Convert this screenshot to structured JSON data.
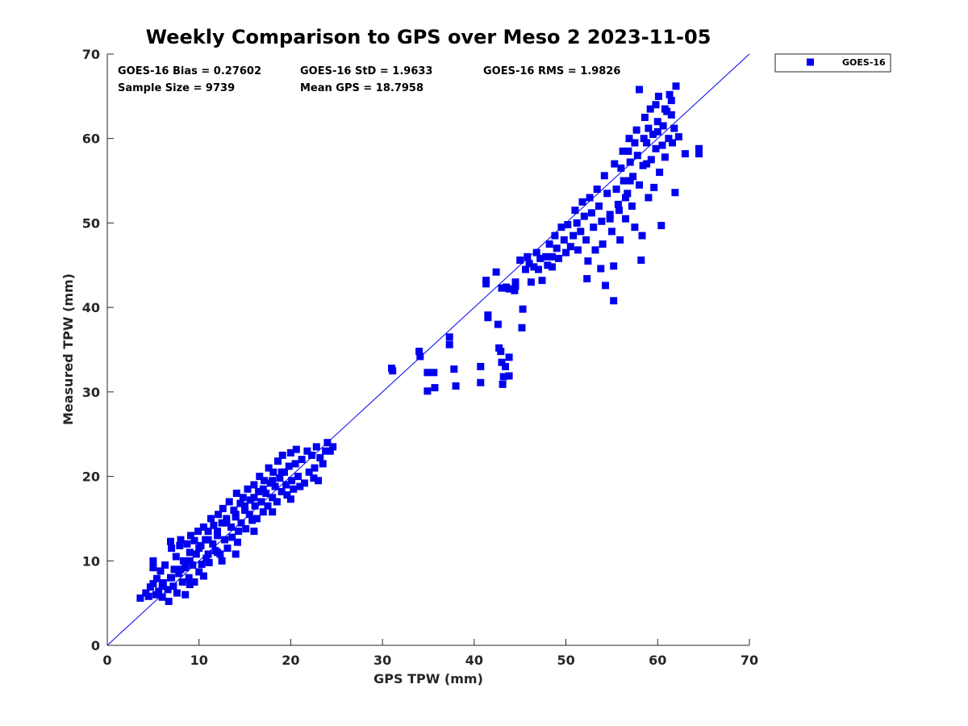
{
  "chart_data": {
    "type": "scatter",
    "title": "Weekly Comparison to GPS over Meso 2 2023-11-05",
    "xlabel": "GPS TPW (mm)",
    "ylabel": "Measured TPW (mm)",
    "xlim": [
      0,
      70
    ],
    "ylim": [
      0,
      70
    ],
    "xticks": [
      "0",
      "10",
      "20",
      "30",
      "40",
      "50",
      "60",
      "70"
    ],
    "yticks": [
      "0",
      "10",
      "20",
      "30",
      "40",
      "50",
      "60",
      "70"
    ],
    "grid": false,
    "legend_position": "outside-top-right",
    "reference_line": {
      "x": [
        0,
        70
      ],
      "y": [
        0,
        70
      ]
    },
    "stats": {
      "bias": "GOES-16 Bias = 0.27602",
      "std": "GOES-16 StD = 1.9633",
      "rms": "GOES-16 RMS = 1.9826",
      "sample_size": "Sample Size = 9739",
      "mean_gps": "Mean GPS = 18.7958"
    },
    "series": [
      {
        "name": "GOES-16",
        "color": "#0000ee",
        "marker": "square",
        "points": [
          [
            3.6,
            5.6
          ],
          [
            4.2,
            6.2
          ],
          [
            4.5,
            5.8
          ],
          [
            4.7,
            6.9
          ],
          [
            5.0,
            7.3
          ],
          [
            5.0,
            9.2
          ],
          [
            5.0,
            10.0
          ],
          [
            5.3,
            6.0
          ],
          [
            5.4,
            7.9
          ],
          [
            5.6,
            6.4
          ],
          [
            5.8,
            8.8
          ],
          [
            6.0,
            5.7
          ],
          [
            6.1,
            7.4
          ],
          [
            6.3,
            9.5
          ],
          [
            6.6,
            6.6
          ],
          [
            6.7,
            5.2
          ],
          [
            6.9,
            8.0
          ],
          [
            6.9,
            12.3
          ],
          [
            7.0,
            11.5
          ],
          [
            7.2,
            7.0
          ],
          [
            7.3,
            9.0
          ],
          [
            7.5,
            10.5
          ],
          [
            7.6,
            6.2
          ],
          [
            7.8,
            8.5
          ],
          [
            7.9,
            11.8
          ],
          [
            8.0,
            12.5
          ],
          [
            8.2,
            7.5
          ],
          [
            8.3,
            10.0
          ],
          [
            8.5,
            9.2
          ],
          [
            8.5,
            6.0
          ],
          [
            8.7,
            12.0
          ],
          [
            8.9,
            8.0
          ],
          [
            9.0,
            11.0
          ],
          [
            9.1,
            13.0
          ],
          [
            9.3,
            9.5
          ],
          [
            9.5,
            7.5
          ],
          [
            9.5,
            12.4
          ],
          [
            9.7,
            10.8
          ],
          [
            9.9,
            13.5
          ],
          [
            10.0,
            8.7
          ],
          [
            10.2,
            11.8
          ],
          [
            10.3,
            9.6
          ],
          [
            10.5,
            14.0
          ],
          [
            10.7,
            12.5
          ],
          [
            10.8,
            10.3
          ],
          [
            11.0,
            13.5
          ],
          [
            11.1,
            9.8
          ],
          [
            11.3,
            15.0
          ],
          [
            11.5,
            12.0
          ],
          [
            11.6,
            14.2
          ],
          [
            11.8,
            11.2
          ],
          [
            12.0,
            13.0
          ],
          [
            12.1,
            15.5
          ],
          [
            12.3,
            10.8
          ],
          [
            12.5,
            14.5
          ],
          [
            12.6,
            16.2
          ],
          [
            12.8,
            12.5
          ],
          [
            13.0,
            15.0
          ],
          [
            13.1,
            11.5
          ],
          [
            13.3,
            17.0
          ],
          [
            13.5,
            14.0
          ],
          [
            13.6,
            12.8
          ],
          [
            13.8,
            16.0
          ],
          [
            14.0,
            15.2
          ],
          [
            14.1,
            18.0
          ],
          [
            14.3,
            13.5
          ],
          [
            14.5,
            16.8
          ],
          [
            14.6,
            14.5
          ],
          [
            14.8,
            17.5
          ],
          [
            15.0,
            16.0
          ],
          [
            15.1,
            13.8
          ],
          [
            15.3,
            18.5
          ],
          [
            15.5,
            15.5
          ],
          [
            15.6,
            17.2
          ],
          [
            15.8,
            14.8
          ],
          [
            16.0,
            19.0
          ],
          [
            16.1,
            16.5
          ],
          [
            16.3,
            15.0
          ],
          [
            16.5,
            18.2
          ],
          [
            16.6,
            20.0
          ],
          [
            16.8,
            17.0
          ],
          [
            17.0,
            15.8
          ],
          [
            17.1,
            19.5
          ],
          [
            17.3,
            18.0
          ],
          [
            17.5,
            16.5
          ],
          [
            17.6,
            21.0
          ],
          [
            17.8,
            19.2
          ],
          [
            18.0,
            17.5
          ],
          [
            18.1,
            20.5
          ],
          [
            18.3,
            18.8
          ],
          [
            18.5,
            17.0
          ],
          [
            18.6,
            21.8
          ],
          [
            18.8,
            19.8
          ],
          [
            19.0,
            18.2
          ],
          [
            19.1,
            22.5
          ],
          [
            19.3,
            20.5
          ],
          [
            19.5,
            19.0
          ],
          [
            19.6,
            17.8
          ],
          [
            19.8,
            21.2
          ],
          [
            20.0,
            22.8
          ],
          [
            20.1,
            19.5
          ],
          [
            20.3,
            18.5
          ],
          [
            20.5,
            21.5
          ],
          [
            20.6,
            23.2
          ],
          [
            20.8,
            20.0
          ],
          [
            21.0,
            18.8
          ],
          [
            21.2,
            22.0
          ],
          [
            21.5,
            19.2
          ],
          [
            21.8,
            23.0
          ],
          [
            22.0,
            20.5
          ],
          [
            22.3,
            22.5
          ],
          [
            22.6,
            21.0
          ],
          [
            22.8,
            23.5
          ],
          [
            23.0,
            19.5
          ],
          [
            23.2,
            22.2
          ],
          [
            23.5,
            21.5
          ],
          [
            23.8,
            23.0
          ],
          [
            24.0,
            24.0
          ],
          [
            24.3,
            23.0
          ],
          [
            24.6,
            23.5
          ],
          [
            11.0,
            10.8
          ],
          [
            12.0,
            11.0
          ],
          [
            14.0,
            10.8
          ],
          [
            8.0,
            9.0
          ],
          [
            9.0,
            10.0
          ],
          [
            10.0,
            11.5
          ],
          [
            11.0,
            12.5
          ],
          [
            12.0,
            13.5
          ],
          [
            13.0,
            14.5
          ],
          [
            14.0,
            15.5
          ],
          [
            15.0,
            16.5
          ],
          [
            16.0,
            17.5
          ],
          [
            17.0,
            18.5
          ],
          [
            18.0,
            19.5
          ],
          [
            19.0,
            20.5
          ],
          [
            6.0,
            7.0
          ],
          [
            7.0,
            8.0
          ],
          [
            16.0,
            13.5
          ],
          [
            18.0,
            15.8
          ],
          [
            20.0,
            17.3
          ],
          [
            22.5,
            19.8
          ],
          [
            14.2,
            12.2
          ],
          [
            12.5,
            10.0
          ],
          [
            10.5,
            8.2
          ],
          [
            9.0,
            7.2
          ],
          [
            31.0,
            32.8
          ],
          [
            31.1,
            32.5
          ],
          [
            34.0,
            34.8
          ],
          [
            34.1,
            34.2
          ],
          [
            34.9,
            32.3
          ],
          [
            34.9,
            30.1
          ],
          [
            35.6,
            32.3
          ],
          [
            35.7,
            30.5
          ],
          [
            37.3,
            36.5
          ],
          [
            37.3,
            35.6
          ],
          [
            37.8,
            32.7
          ],
          [
            38.0,
            30.7
          ],
          [
            40.7,
            33.0
          ],
          [
            40.7,
            31.1
          ],
          [
            41.3,
            42.8
          ],
          [
            41.3,
            43.2
          ],
          [
            41.5,
            38.8
          ],
          [
            41.5,
            39.1
          ],
          [
            42.4,
            44.2
          ],
          [
            42.6,
            38.0
          ],
          [
            42.7,
            35.2
          ],
          [
            42.9,
            34.8
          ],
          [
            43.0,
            42.3
          ],
          [
            43.0,
            33.5
          ],
          [
            43.1,
            30.9
          ],
          [
            43.2,
            31.8
          ],
          [
            43.4,
            33.0
          ],
          [
            43.5,
            42.4
          ],
          [
            43.8,
            31.9
          ],
          [
            43.8,
            34.1
          ],
          [
            43.8,
            42.2
          ],
          [
            44.4,
            42.0
          ],
          [
            44.5,
            42.5
          ],
          [
            44.5,
            43.0
          ],
          [
            45.0,
            45.6
          ],
          [
            45.2,
            37.6
          ],
          [
            45.3,
            39.8
          ],
          [
            45.6,
            44.5
          ],
          [
            45.8,
            46.0
          ],
          [
            46.0,
            45.2
          ],
          [
            46.2,
            43.0
          ],
          [
            46.5,
            44.8
          ],
          [
            46.8,
            46.5
          ],
          [
            47.0,
            44.5
          ],
          [
            47.2,
            45.8
          ],
          [
            47.4,
            43.2
          ],
          [
            47.8,
            46.0
          ],
          [
            48.0,
            45.0
          ],
          [
            48.2,
            47.5
          ],
          [
            48.5,
            46.0
          ],
          [
            48.5,
            44.8
          ],
          [
            48.8,
            48.5
          ],
          [
            49.0,
            47.0
          ],
          [
            49.2,
            45.8
          ],
          [
            49.5,
            49.5
          ],
          [
            49.8,
            48.0
          ],
          [
            50.0,
            46.5
          ],
          [
            50.2,
            49.8
          ],
          [
            50.5,
            47.2
          ],
          [
            50.8,
            48.5
          ],
          [
            51.0,
            51.5
          ],
          [
            51.2,
            50.0
          ],
          [
            51.3,
            46.8
          ],
          [
            51.6,
            49.0
          ],
          [
            51.8,
            52.5
          ],
          [
            52.0,
            50.8
          ],
          [
            52.2,
            48.0
          ],
          [
            52.3,
            43.4
          ],
          [
            52.4,
            45.5
          ],
          [
            52.6,
            53.0
          ],
          [
            52.8,
            51.2
          ],
          [
            53.0,
            49.5
          ],
          [
            53.2,
            46.8
          ],
          [
            53.4,
            54.0
          ],
          [
            53.6,
            52.0
          ],
          [
            53.8,
            44.6
          ],
          [
            53.9,
            50.2
          ],
          [
            54.0,
            47.5
          ],
          [
            54.2,
            55.6
          ],
          [
            54.3,
            42.6
          ],
          [
            54.5,
            53.5
          ],
          [
            54.8,
            51.0
          ],
          [
            55.0,
            49.0
          ],
          [
            55.2,
            44.9
          ],
          [
            55.2,
            40.8
          ],
          [
            55.3,
            57.0
          ],
          [
            55.5,
            54.0
          ],
          [
            55.7,
            52.2
          ],
          [
            55.9,
            48.0
          ],
          [
            56.0,
            56.5
          ],
          [
            56.2,
            58.5
          ],
          [
            56.3,
            55.0
          ],
          [
            56.5,
            50.5
          ],
          [
            56.7,
            53.5
          ],
          [
            56.9,
            60.0
          ],
          [
            57.0,
            57.2
          ],
          [
            57.2,
            52.0
          ],
          [
            57.3,
            55.5
          ],
          [
            57.5,
            49.5
          ],
          [
            57.7,
            61.0
          ],
          [
            57.8,
            58.0
          ],
          [
            58.0,
            54.5
          ],
          [
            58.0,
            65.8
          ],
          [
            58.2,
            45.6
          ],
          [
            58.3,
            48.5
          ],
          [
            58.4,
            56.8
          ],
          [
            58.6,
            62.5
          ],
          [
            58.8,
            59.5
          ],
          [
            59.0,
            53.0
          ],
          [
            59.2,
            63.5
          ],
          [
            59.3,
            57.5
          ],
          [
            59.5,
            60.5
          ],
          [
            59.6,
            54.2
          ],
          [
            59.8,
            58.8
          ],
          [
            60.0,
            62.0
          ],
          [
            60.1,
            65.0
          ],
          [
            60.2,
            56.0
          ],
          [
            60.4,
            49.7
          ],
          [
            60.5,
            59.2
          ],
          [
            60.6,
            61.5
          ],
          [
            60.8,
            57.8
          ],
          [
            61.0,
            63.2
          ],
          [
            61.2,
            60.0
          ],
          [
            61.3,
            65.2
          ],
          [
            61.5,
            62.8
          ],
          [
            61.6,
            59.5
          ],
          [
            61.8,
            61.2
          ],
          [
            61.9,
            53.6
          ],
          [
            62.0,
            66.2
          ],
          [
            62.3,
            60.2
          ],
          [
            63.0,
            58.2
          ],
          [
            64.5,
            58.8
          ],
          [
            64.5,
            58.2
          ],
          [
            60.0,
            60.8
          ],
          [
            59.0,
            61.2
          ],
          [
            58.5,
            60.0
          ],
          [
            57.5,
            59.5
          ],
          [
            56.8,
            58.5
          ],
          [
            59.8,
            64.0
          ],
          [
            60.8,
            63.5
          ],
          [
            61.5,
            64.5
          ],
          [
            58.8,
            57.0
          ],
          [
            57.0,
            55.0
          ],
          [
            56.5,
            53.0
          ],
          [
            55.8,
            51.5
          ],
          [
            54.8,
            50.5
          ]
        ]
      }
    ]
  }
}
